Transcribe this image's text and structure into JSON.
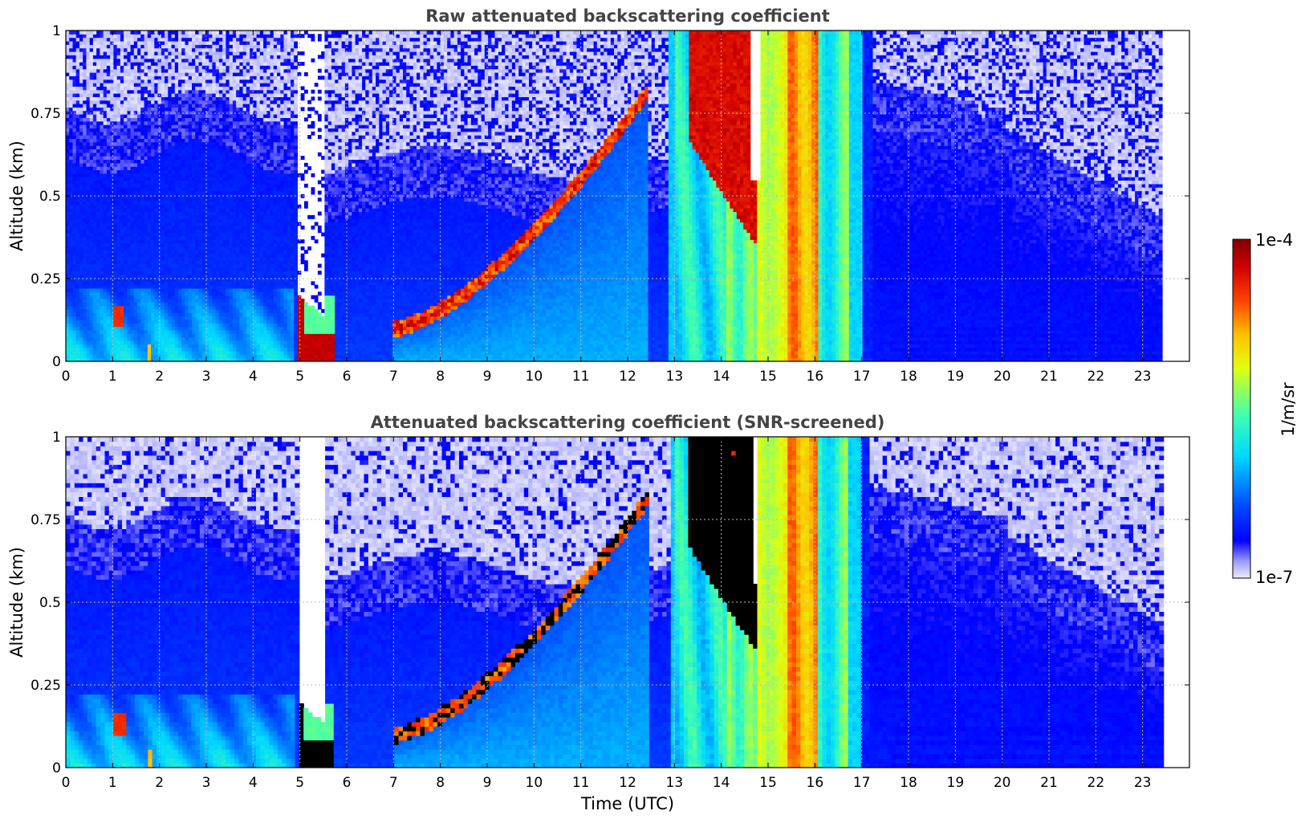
{
  "chart_data": [
    {
      "type": "heatmap",
      "title": "Raw attenuated backscattering coefficient",
      "xlabel": "",
      "ylabel": "Altitude (km)",
      "xlim": [
        0,
        24
      ],
      "ylim": [
        0,
        1
      ],
      "x_ticks": [
        "0",
        "1",
        "2",
        "3",
        "4",
        "5",
        "6",
        "7",
        "8",
        "9",
        "10",
        "11",
        "12",
        "13",
        "14",
        "15",
        "16",
        "17",
        "18",
        "19",
        "20",
        "21",
        "22",
        "23"
      ],
      "y_ticks": [
        "0",
        "0.25",
        "0.5",
        "0.75",
        "1"
      ],
      "data_end_hour": 23.45,
      "grid": true,
      "colorscale": "jet",
      "color_scale_log": true,
      "value_range": [
        "1e-7",
        "1e-4"
      ],
      "features": [
        {
          "name": "surface aerosol layer",
          "t_start": 0,
          "t_end": 4.9,
          "alt_top": 0.25
        },
        {
          "name": "blind zone",
          "t_start": 4.95,
          "t_end": 5.6,
          "alt_top": 1.0
        },
        {
          "name": "strong low layer",
          "t_start": 5.0,
          "t_end": 5.7,
          "alt_top": 0.2
        },
        {
          "name": "rising aerosol top",
          "points": [
            [
              7,
              0.1
            ],
            [
              8,
              0.18
            ],
            [
              9,
              0.3
            ],
            [
              10,
              0.42
            ],
            [
              11,
              0.58
            ],
            [
              12,
              0.7
            ],
            [
              12.4,
              0.82
            ]
          ]
        },
        {
          "name": "cloud / precipitation",
          "t_start": 12.9,
          "t_end": 17.2,
          "alt_top": 1.0
        },
        {
          "name": "boundary layer decay",
          "t_start": 17.2,
          "t_end": 23.45,
          "alt_top": 0.6
        }
      ]
    },
    {
      "type": "heatmap",
      "title": "Attenuated backscattering coefficient (SNR-screened)",
      "xlabel": "Time (UTC)",
      "ylabel": "Altitude (km)",
      "xlim": [
        0,
        24
      ],
      "ylim": [
        0,
        1
      ],
      "x_ticks": [
        "0",
        "1",
        "2",
        "3",
        "4",
        "5",
        "6",
        "7",
        "8",
        "9",
        "10",
        "11",
        "12",
        "13",
        "14",
        "15",
        "16",
        "17",
        "18",
        "19",
        "20",
        "21",
        "22",
        "23"
      ],
      "y_ticks": [
        "0",
        "0.25",
        "0.5",
        "0.75",
        "1"
      ],
      "data_end_hour": 23.45,
      "grid": true,
      "colorscale": "jet",
      "color_scale_log": true,
      "value_range": [
        "1e-7",
        "1e-4"
      ],
      "saturated_color": "#000000"
    }
  ],
  "colorbar": {
    "label": "1/m/sr",
    "max_label": "1e-4",
    "min_label": "1e-7"
  }
}
